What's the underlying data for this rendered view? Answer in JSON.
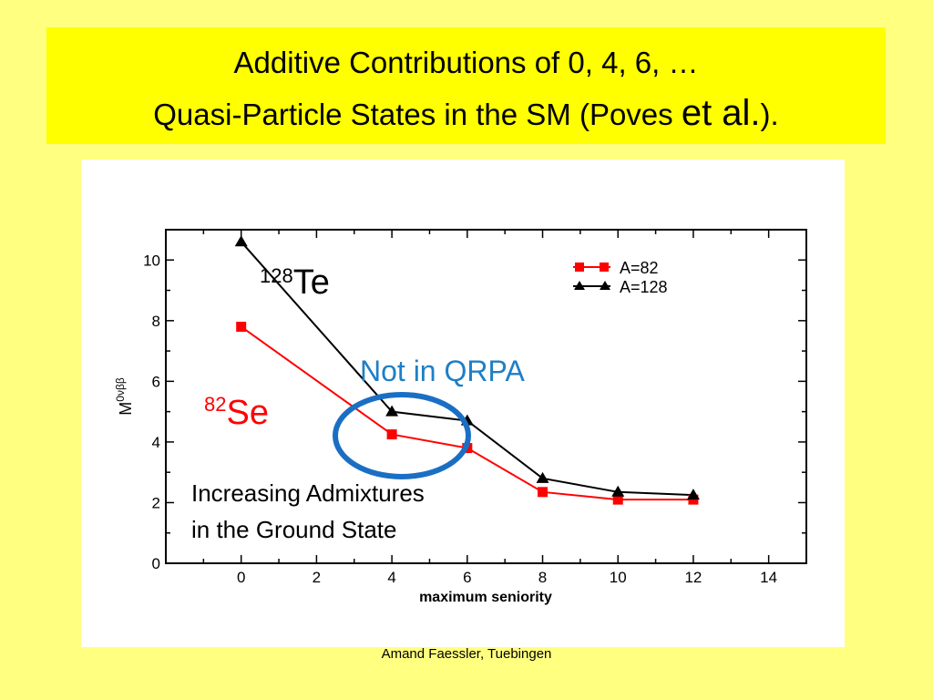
{
  "slide": {
    "title_line1": "Additive Contributions of 0, 4, 6, …",
    "title_line2_prefix": "Quasi-Particle States in the SM (Poves ",
    "title_line2_etal": "et al.",
    "title_line2_suffix": ").",
    "footer": "Amand Faessler, Tuebingen"
  },
  "annotations": {
    "te_mass": "128",
    "te_symbol": "Te",
    "se_mass": "82",
    "se_symbol": "Se",
    "not_in_qrpa": "Not in QRPA",
    "admixtures_line1": "Increasing Admixtures",
    "admixtures_line2": "in the Ground State"
  },
  "colors": {
    "background": "#ffff80",
    "title_background": "#ffff00",
    "series_a82": "#ff0000",
    "series_a128": "#000000",
    "qrpa_text": "#1e7fc6",
    "circle": "#1a6fc4",
    "se_label": "#ff0000"
  },
  "chart_data": {
    "type": "line",
    "xlabel": "maximum seniority",
    "ylabel": "M",
    "ylabel_sup": "0νββ",
    "xlim": [
      -2,
      15
    ],
    "ylim": [
      0,
      11
    ],
    "xticks": [
      0,
      2,
      4,
      6,
      8,
      10,
      12,
      14
    ],
    "yticks": [
      0,
      2,
      4,
      6,
      8,
      10
    ],
    "legend_position": "top-right",
    "series": [
      {
        "name": "A=82",
        "marker": "square",
        "color": "#ff0000",
        "x": [
          0,
          4,
          6,
          8,
          10,
          12
        ],
        "y": [
          7.8,
          4.25,
          3.8,
          2.35,
          2.1,
          2.1
        ]
      },
      {
        "name": "A=128",
        "marker": "triangle",
        "color": "#000000",
        "x": [
          0,
          4,
          6,
          8,
          10,
          12
        ],
        "y": [
          10.6,
          5.0,
          4.7,
          2.8,
          2.35,
          2.25
        ]
      }
    ]
  }
}
